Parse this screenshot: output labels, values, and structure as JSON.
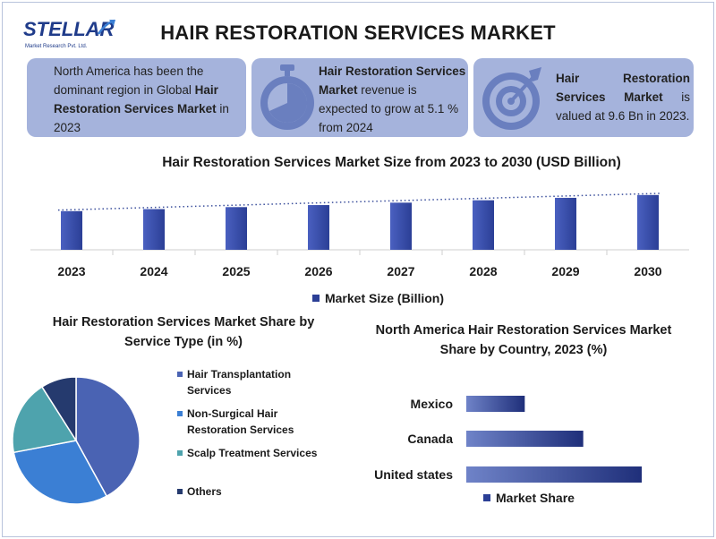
{
  "header": {
    "logo_text": "STELLAR",
    "logo_subtext": "Market Research Pvt. Ltd.",
    "title": "HAIR RESTORATION SERVICES MARKET"
  },
  "cards": {
    "card1": {
      "pre": "North America has been the dominant region in Global ",
      "bold": "Hair Restoration Services Market",
      "post": " in 2023"
    },
    "card2": {
      "bold": "Hair Restoration Services Market",
      "post": " revenue is expected to grow at 5.1 % from 2024",
      "icon": "stopwatch-icon"
    },
    "card3": {
      "bold": "Hair Restoration Services Market",
      "post": " is valued at 9.6 Bn in 2023.",
      "icon": "target-icon"
    }
  },
  "colors": {
    "card_bg": "#a5b3dc",
    "bar": "#2b3f96",
    "pie": [
      "#4a63b3",
      "#3b7fd4",
      "#4ea3ad",
      "#253a6e"
    ]
  },
  "chart_data": [
    {
      "type": "bar",
      "title": "Hair Restoration Services Market Size from 2023 to 2030 (USD Billion)",
      "categories": [
        "2023",
        "2024",
        "2025",
        "2026",
        "2027",
        "2028",
        "2029",
        "2030"
      ],
      "series": [
        {
          "name": "Market Size (Billion)",
          "values": [
            9.6,
            10.1,
            10.6,
            11.1,
            11.7,
            12.3,
            12.9,
            13.6
          ]
        }
      ],
      "ylim": [
        0,
        16
      ],
      "trendline": "dotted linear",
      "legend": "bottom"
    },
    {
      "type": "pie",
      "title": "Hair Restoration Services Market Share by Service Type (in %)",
      "labels": [
        "Hair Transplantation Services",
        "Non-Surgical Hair Restoration Services",
        "Scalp Treatment Services",
        "Others"
      ],
      "values": [
        42,
        30,
        19,
        9
      ],
      "legend": "right"
    },
    {
      "type": "bar",
      "orientation": "horizontal",
      "title": "North America Hair Restoration Services Market Share by Country, 2023 (%)",
      "categories": [
        "Mexico",
        "Canada",
        "United states"
      ],
      "series": [
        {
          "name": "Market Share",
          "values": [
            10,
            20,
            30
          ]
        }
      ],
      "xlim": [
        0,
        30
      ],
      "legend": "bottom"
    }
  ]
}
